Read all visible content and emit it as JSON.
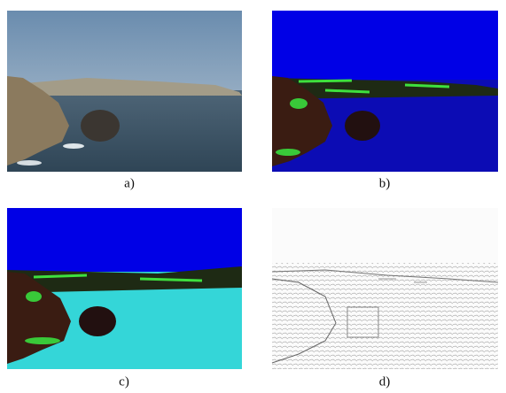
{
  "panels": [
    {
      "caption": "a)"
    },
    {
      "caption": "b)"
    },
    {
      "caption": "c)"
    },
    {
      "caption": "d)"
    }
  ]
}
